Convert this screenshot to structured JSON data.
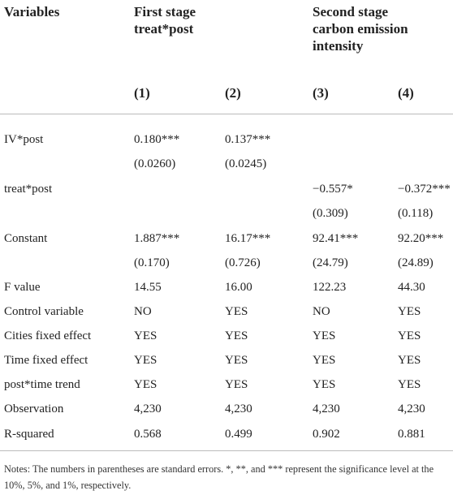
{
  "table": {
    "header": [
      "Variables",
      "First stage treat*post",
      "Second stage carbon emission intensity"
    ],
    "columns": [
      "(1)",
      "(2)",
      "(3)",
      "(4)"
    ],
    "rows": [
      [
        "IV*post",
        "0.180***",
        "0.137***",
        null,
        null
      ],
      [
        null,
        "(0.0260)",
        "(0.0245)",
        null,
        null
      ],
      [
        "treat*post",
        null,
        null,
        "−0.557*",
        "−0.372***"
      ],
      [
        null,
        null,
        null,
        "(0.309)",
        "(0.118)"
      ],
      [
        "Constant",
        "1.887***",
        "16.17***",
        "92.41***",
        "92.20***"
      ],
      [
        null,
        "(0.170)",
        "(0.726)",
        "(24.79)",
        "(24.89)"
      ],
      [
        "F value",
        "14.55",
        "16.00",
        "122.23",
        "44.30"
      ],
      [
        "Control variable",
        "NO",
        "YES",
        "NO",
        "YES"
      ],
      [
        "Cities fixed effect",
        "YES",
        "YES",
        "YES",
        "YES"
      ],
      [
        "Time fixed effect",
        "YES",
        "YES",
        "YES",
        "YES"
      ],
      [
        "post*time trend",
        "YES",
        "YES",
        "YES",
        "YES"
      ],
      [
        "Observation",
        "4,230",
        "4,230",
        "4,230",
        "4,230"
      ],
      [
        "R-squared",
        "0.568",
        "0.499",
        "0.902",
        "0.881"
      ]
    ],
    "notes": "Notes: The numbers in parentheses are standard errors. *, **, and *** represent the significance level at the 10%, 5%, and 1%, respectively."
  }
}
